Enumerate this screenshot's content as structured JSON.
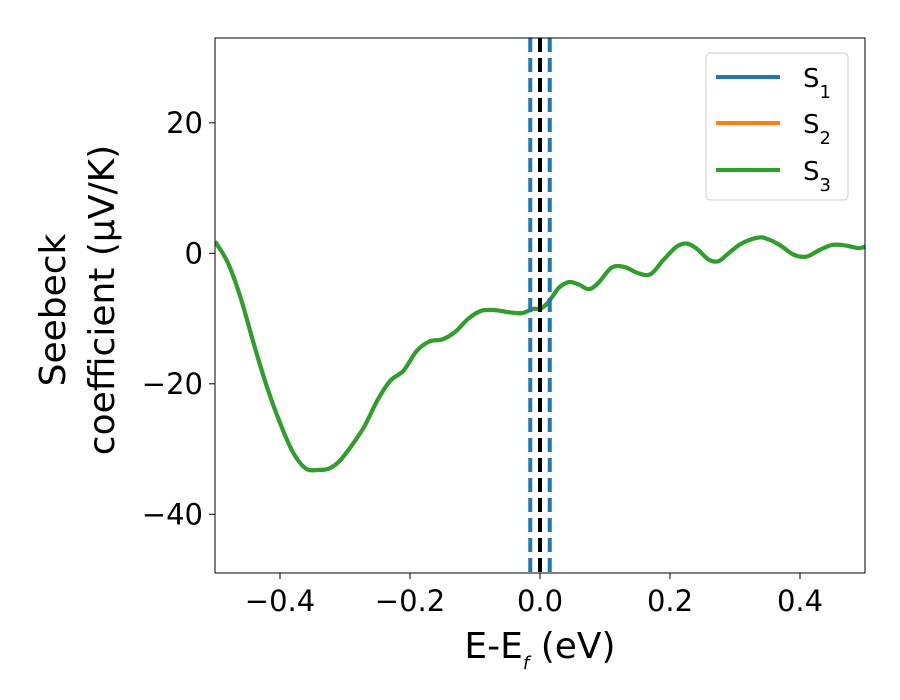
{
  "chart_data": {
    "type": "line",
    "xlabel": {
      "main": "E-E",
      "sub": "f",
      "suffix": " (eV)"
    },
    "ylabel": {
      "line1": "Seebeck",
      "line2": "coefficient  (μV/K)"
    },
    "xlim": [
      -0.5,
      0.5
    ],
    "ylim": [
      -49,
      33
    ],
    "xticks": [
      -0.4,
      -0.2,
      0.0,
      0.2,
      0.4
    ],
    "xtick_labels": [
      "−0.4",
      "−0.2",
      "0.0",
      "0.2",
      "0.4"
    ],
    "yticks": [
      -40,
      -20,
      0,
      20
    ],
    "ytick_labels": [
      "−40",
      "−20",
      "0",
      "20"
    ],
    "grid": false,
    "legend_position": "top-right",
    "series": [
      {
        "name": {
          "main": "S",
          "sub": "1"
        },
        "color": "#1f77b4",
        "x": [
          -0.5,
          -0.48,
          -0.46,
          -0.44,
          -0.42,
          -0.4,
          -0.38,
          -0.36,
          -0.34,
          -0.325,
          -0.31,
          -0.29,
          -0.27,
          -0.25,
          -0.23,
          -0.21,
          -0.19,
          -0.17,
          -0.15,
          -0.13,
          -0.11,
          -0.09,
          -0.07,
          -0.05,
          -0.03,
          -0.02,
          -0.01,
          0.0,
          0.01,
          0.02,
          0.03,
          0.045,
          0.06,
          0.075,
          0.09,
          0.11,
          0.13,
          0.15,
          0.17,
          0.19,
          0.21,
          0.225,
          0.24,
          0.26,
          0.275,
          0.29,
          0.31,
          0.335,
          0.35,
          0.37,
          0.39,
          0.41,
          0.43,
          0.45,
          0.47,
          0.49,
          0.5
        ],
        "y": [
          1.8,
          -1.5,
          -7,
          -14,
          -20.5,
          -26,
          -30.5,
          -33,
          -33.2,
          -33,
          -32,
          -29.5,
          -26.5,
          -22.5,
          -19.5,
          -18,
          -15,
          -13.5,
          -13.2,
          -12,
          -10,
          -8.8,
          -8.7,
          -9.0,
          -9.2,
          -8.9,
          -8.5,
          -8.5,
          -7.8,
          -6.5,
          -5.2,
          -4.4,
          -4.8,
          -5.5,
          -4.5,
          -2.2,
          -2.1,
          -3.0,
          -3.2,
          -1.0,
          1.0,
          1.5,
          0.8,
          -1.0,
          -1.2,
          0.0,
          1.5,
          2.4,
          2.2,
          1.2,
          -0.2,
          -0.5,
          0.5,
          1.3,
          1.2,
          0.8,
          1.0
        ]
      },
      {
        "name": {
          "main": "S",
          "sub": "2"
        },
        "color": "#ff7f0e",
        "x": [
          -0.5,
          -0.48,
          -0.46,
          -0.44,
          -0.42,
          -0.4,
          -0.38,
          -0.36,
          -0.34,
          -0.325,
          -0.31,
          -0.29,
          -0.27,
          -0.25,
          -0.23,
          -0.21,
          -0.19,
          -0.17,
          -0.15,
          -0.13,
          -0.11,
          -0.09,
          -0.07,
          -0.05,
          -0.03,
          -0.02,
          -0.01,
          0.0,
          0.01,
          0.02,
          0.03,
          0.045,
          0.06,
          0.075,
          0.09,
          0.11,
          0.13,
          0.15,
          0.17,
          0.19,
          0.21,
          0.225,
          0.24,
          0.26,
          0.275,
          0.29,
          0.31,
          0.335,
          0.35,
          0.37,
          0.39,
          0.41,
          0.43,
          0.45,
          0.47,
          0.49,
          0.5
        ],
        "y": [
          1.8,
          -1.5,
          -7,
          -14,
          -20.5,
          -26,
          -30.5,
          -33,
          -33.2,
          -33,
          -32,
          -29.5,
          -26.5,
          -22.5,
          -19.5,
          -18,
          -15,
          -13.5,
          -13.2,
          -12,
          -10,
          -8.8,
          -8.7,
          -9.0,
          -9.2,
          -8.9,
          -8.5,
          -8.5,
          -7.8,
          -6.5,
          -5.2,
          -4.4,
          -4.8,
          -5.5,
          -4.5,
          -2.2,
          -2.1,
          -3.0,
          -3.2,
          -1.0,
          1.0,
          1.5,
          0.8,
          -1.0,
          -1.2,
          0.0,
          1.5,
          2.4,
          2.2,
          1.2,
          -0.2,
          -0.5,
          0.5,
          1.3,
          1.2,
          0.8,
          1.0
        ]
      },
      {
        "name": {
          "main": "S",
          "sub": "3"
        },
        "color": "#2ca02c",
        "x": [
          -0.5,
          -0.48,
          -0.46,
          -0.44,
          -0.42,
          -0.4,
          -0.38,
          -0.36,
          -0.34,
          -0.325,
          -0.31,
          -0.29,
          -0.27,
          -0.25,
          -0.23,
          -0.21,
          -0.19,
          -0.17,
          -0.15,
          -0.13,
          -0.11,
          -0.09,
          -0.07,
          -0.05,
          -0.03,
          -0.02,
          -0.01,
          0.0,
          0.01,
          0.02,
          0.03,
          0.045,
          0.06,
          0.075,
          0.09,
          0.11,
          0.13,
          0.15,
          0.17,
          0.19,
          0.21,
          0.225,
          0.24,
          0.26,
          0.275,
          0.29,
          0.31,
          0.335,
          0.35,
          0.37,
          0.39,
          0.41,
          0.43,
          0.45,
          0.47,
          0.49,
          0.5
        ],
        "y": [
          1.8,
          -1.5,
          -7,
          -14,
          -20.5,
          -26,
          -30.5,
          -33,
          -33.2,
          -33,
          -32,
          -29.5,
          -26.5,
          -22.5,
          -19.5,
          -18,
          -15,
          -13.5,
          -13.2,
          -12,
          -10,
          -8.8,
          -8.7,
          -9.0,
          -9.2,
          -8.9,
          -8.5,
          -8.5,
          -7.8,
          -6.5,
          -5.2,
          -4.4,
          -4.8,
          -5.5,
          -4.5,
          -2.2,
          -2.1,
          -3.0,
          -3.2,
          -1.0,
          1.0,
          1.5,
          0.8,
          -1.0,
          -1.2,
          0.0,
          1.5,
          2.4,
          2.2,
          1.2,
          -0.2,
          -0.5,
          0.5,
          1.3,
          1.2,
          0.8,
          1.0
        ]
      }
    ],
    "reference_lines": [
      {
        "x": -0.015,
        "style": "dashed",
        "color": "#1f77b4"
      },
      {
        "x": 0.0,
        "style": "dashed",
        "color": "#000000"
      },
      {
        "x": 0.015,
        "style": "dashed",
        "color": "#1f77b4"
      }
    ]
  }
}
